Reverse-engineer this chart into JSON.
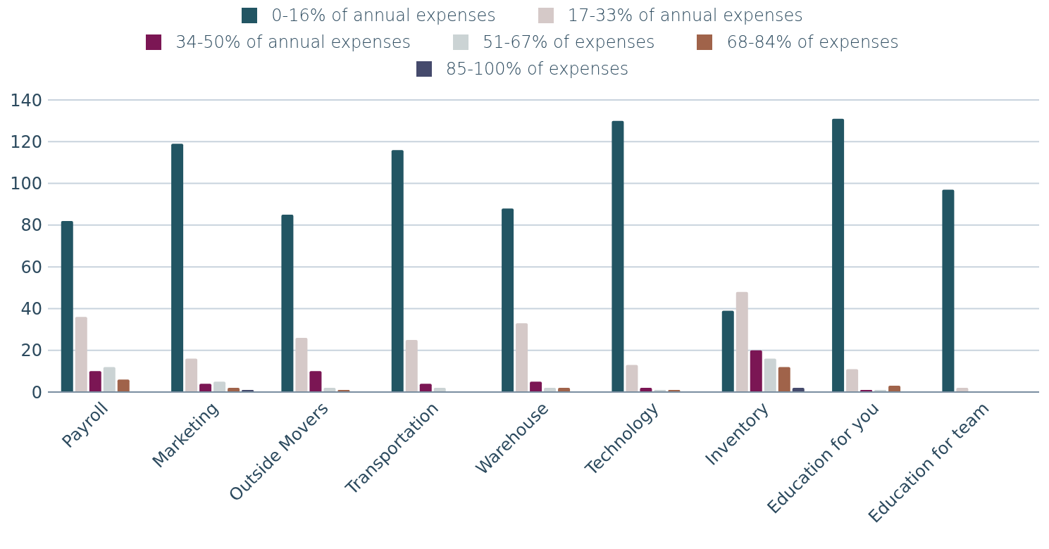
{
  "chart_data": {
    "type": "bar",
    "categories": [
      "Payroll",
      "Marketing",
      "Outside Movers",
      "Transportation",
      "Warehouse",
      "Technology",
      "Inventory",
      "Education for you",
      "Education for team"
    ],
    "series": [
      {
        "name": "0-16% of annual expenses",
        "color": "#225563",
        "values": [
          82,
          119,
          85,
          116,
          88,
          130,
          39,
          131,
          97
        ]
      },
      {
        "name": "17-33% of annual expenses",
        "color": "#d5c9c8",
        "values": [
          36,
          16,
          26,
          25,
          33,
          13,
          48,
          11,
          2
        ]
      },
      {
        "name": "34-50% of annual expenses",
        "color": "#7b1654",
        "values": [
          10,
          4,
          10,
          4,
          5,
          2,
          20,
          1,
          0
        ]
      },
      {
        "name": "51-67% of expenses",
        "color": "#cbd3d4",
        "values": [
          12,
          5,
          2,
          2,
          2,
          1,
          16,
          1,
          0
        ]
      },
      {
        "name": "68-84% of expenses",
        "color": "#a0634a",
        "values": [
          6,
          2,
          1,
          0,
          2,
          1,
          12,
          3,
          0
        ]
      },
      {
        "name": "85-100% of expenses",
        "color": "#454a6c",
        "values": [
          0,
          1,
          0,
          0,
          0,
          0,
          2,
          0,
          0
        ]
      }
    ],
    "ylim": [
      0,
      140
    ],
    "yticks": [
      0,
      20,
      40,
      60,
      80,
      100,
      120,
      140
    ],
    "grid": "y",
    "legend": "top"
  }
}
